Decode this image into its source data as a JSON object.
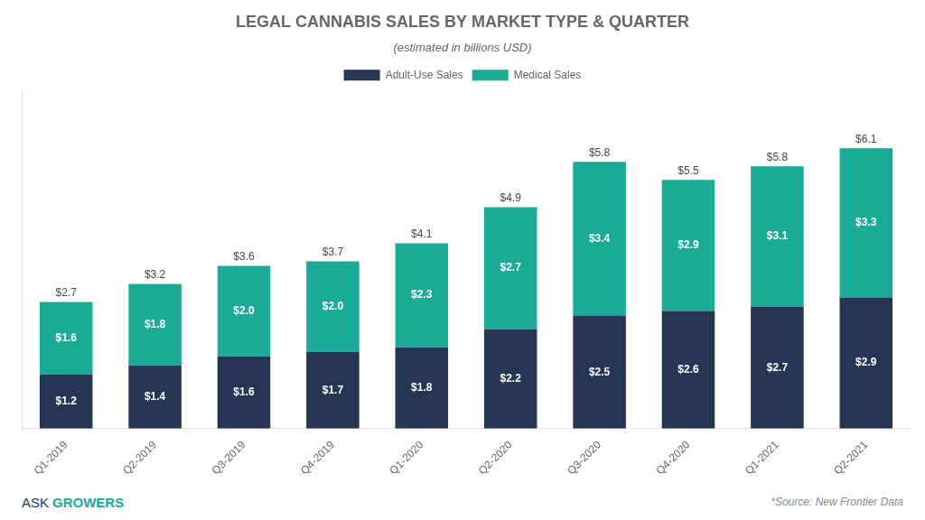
{
  "chart_data": {
    "type": "bar",
    "title": "LEGAL CANNABIS SALES BY MARKET TYPE & QUARTER",
    "subtitle": "(estimated in billions USD)",
    "categories": [
      "Q1-2019",
      "Q2-2019",
      "Q3-2019",
      "Q4-2019",
      "Q1-2020",
      "Q2-2020",
      "Q3-2020",
      "Q4-2020",
      "Q1-2021",
      "Q2-2021"
    ],
    "series": [
      {
        "name": "Adult-Use Sales",
        "color": "#253554",
        "values": [
          1.2,
          1.4,
          1.6,
          1.7,
          1.8,
          2.2,
          2.5,
          2.6,
          2.7,
          2.9
        ],
        "value_labels": [
          "$1.2",
          "$1.4",
          "$1.6",
          "$1.7",
          "$1.8",
          "$2.2",
          "$2.5",
          "$2.6",
          "$2.7",
          "$2.9"
        ]
      },
      {
        "name": "Medical Sales",
        "color": "#1aab96",
        "values": [
          1.6,
          1.8,
          2.0,
          2.0,
          2.3,
          2.7,
          3.4,
          2.9,
          3.1,
          3.3
        ],
        "value_labels": [
          "$1.6",
          "$1.8",
          "$2.0",
          "$2.0",
          "$2.3",
          "$2.7",
          "$3.4",
          "$2.9",
          "$3.1",
          "$3.3"
        ]
      }
    ],
    "totals": [
      2.7,
      3.2,
      3.6,
      3.7,
      4.1,
      4.9,
      5.8,
      5.5,
      5.8,
      6.1
    ],
    "total_labels": [
      "$2.7",
      "$3.2",
      "$3.6",
      "$3.7",
      "$4.1",
      "$4.9",
      "$5.8",
      "$5.5",
      "$5.8",
      "$6.1"
    ],
    "stacked": true,
    "data_labels": true,
    "ylim": [
      0,
      7.5
    ],
    "grid": false,
    "legend": "top",
    "tick_labels": "x",
    "annotations": [
      "*Source: New Frontier Data",
      "ASK",
      "GROWERS"
    ]
  }
}
